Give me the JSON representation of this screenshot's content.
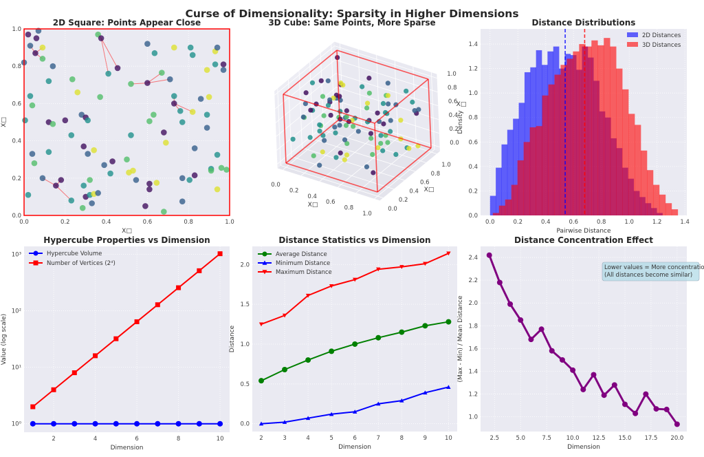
{
  "figure": {
    "suptitle": "Curse of Dimensionality: Sparsity in Higher Dimensions"
  },
  "chart_data": [
    {
      "id": "2d-square",
      "type": "scatter",
      "title": "2D Square: Points Appear Close",
      "xlabel": "X□",
      "ylabel": "X□",
      "xlim": [
        0,
        1
      ],
      "ylim": [
        0,
        1
      ],
      "xticks": [
        0,
        0.2,
        0.4,
        0.6,
        0.8,
        1.0
      ],
      "xtick_labels": [
        "0.0",
        "0.2",
        "0.4",
        "0.6",
        "0.8",
        "1.0"
      ],
      "yticks": [
        0,
        0.2,
        0.4,
        0.6,
        0.8,
        1.0
      ],
      "ytick_labels": [
        "0.0",
        "0.2",
        "0.4",
        "0.6",
        "0.8",
        "1.0"
      ],
      "grid": true,
      "frame_color": "#ff0000",
      "colormap": "viridis",
      "points": [
        [
          0.02,
          0.97,
          0.05
        ],
        [
          0.07,
          0.99,
          0.3
        ],
        [
          0.06,
          0.95,
          0.05
        ],
        [
          0.03,
          0.91,
          0.3
        ],
        [
          0.055,
          0.87,
          0.05
        ],
        [
          0.09,
          0.9,
          0.95
        ],
        [
          0.09,
          0.84,
          0.7
        ],
        [
          0.0,
          0.82,
          0.3
        ],
        [
          0.14,
          0.8,
          0.3
        ],
        [
          0.12,
          0.72,
          0.5
        ],
        [
          0.235,
          0.73,
          0.7
        ],
        [
          0.26,
          0.66,
          0.95
        ],
        [
          0.03,
          0.64,
          0.5
        ],
        [
          0.04,
          0.59,
          0.7
        ],
        [
          0.005,
          0.51,
          0.5
        ],
        [
          0.12,
          0.5,
          0.05
        ],
        [
          0.14,
          0.49,
          0.7
        ],
        [
          0.2,
          0.51,
          0.05
        ],
        [
          0.28,
          0.54,
          0.3
        ],
        [
          0.3,
          0.525,
          0.05
        ],
        [
          0.31,
          0.51,
          0.5
        ],
        [
          0.23,
          0.43,
          0.5
        ],
        [
          0.29,
          0.37,
          0.05
        ],
        [
          0.34,
          0.35,
          0.95
        ],
        [
          0.04,
          0.33,
          0.3
        ],
        [
          0.05,
          0.28,
          0.7
        ],
        [
          0.12,
          0.34,
          0.5
        ],
        [
          0.31,
          0.33,
          0.3
        ],
        [
          0.09,
          0.2,
          0.3
        ],
        [
          0.155,
          0.16,
          0.05
        ],
        [
          0.18,
          0.19,
          0.05
        ],
        [
          0.02,
          0.11,
          0.5
        ],
        [
          0.23,
          0.08,
          0.5
        ],
        [
          0.285,
          0.04,
          0.7
        ],
        [
          0.29,
          0.16,
          0.5
        ],
        [
          0.32,
          0.19,
          0.7
        ],
        [
          0.3,
          0.1,
          0.05
        ],
        [
          0.32,
          0.11,
          0.5
        ],
        [
          0.34,
          0.115,
          0.95
        ],
        [
          0.36,
          0.12,
          0.3
        ],
        [
          0.33,
          0.065,
          0.3
        ],
        [
          0.36,
          0.97,
          0.7
        ],
        [
          0.375,
          0.95,
          0.05
        ],
        [
          0.455,
          0.79,
          0.05
        ],
        [
          0.41,
          0.76,
          0.5
        ],
        [
          0.37,
          0.635,
          0.7
        ],
        [
          0.39,
          0.27,
          0.3
        ],
        [
          0.43,
          0.29,
          0.05
        ],
        [
          0.42,
          0.225,
          0.5
        ],
        [
          0.5,
          0.3,
          0.7
        ],
        [
          0.51,
          0.23,
          0.95
        ],
        [
          0.53,
          0.24,
          0.95
        ],
        [
          0.545,
          0.19,
          0.3
        ],
        [
          0.52,
          0.43,
          0.5
        ],
        [
          0.52,
          0.705,
          0.7
        ],
        [
          0.6,
          0.71,
          0.05
        ],
        [
          0.67,
          0.765,
          0.7
        ],
        [
          0.71,
          0.73,
          0.3
        ],
        [
          0.6,
          0.92,
          0.3
        ],
        [
          0.635,
          0.87,
          0.5
        ],
        [
          0.73,
          0.9,
          0.95
        ],
        [
          0.81,
          0.9,
          0.5
        ],
        [
          0.82,
          0.86,
          0.5
        ],
        [
          0.89,
          0.78,
          0.95
        ],
        [
          0.93,
          0.88,
          0.95
        ],
        [
          0.94,
          0.9,
          0.3
        ],
        [
          0.93,
          0.81,
          0.5
        ],
        [
          0.97,
          0.81,
          0.05
        ],
        [
          0.97,
          0.78,
          0.3
        ],
        [
          0.73,
          0.64,
          0.5
        ],
        [
          0.73,
          0.6,
          0.05
        ],
        [
          0.76,
          0.56,
          0.5
        ],
        [
          0.82,
          0.555,
          0.95
        ],
        [
          0.86,
          0.625,
          0.3
        ],
        [
          0.9,
          0.635,
          0.95
        ],
        [
          0.89,
          0.54,
          0.5
        ],
        [
          0.89,
          0.47,
          0.3
        ],
        [
          0.77,
          0.5,
          0.5
        ],
        [
          0.63,
          0.54,
          0.7
        ],
        [
          0.61,
          0.505,
          0.7
        ],
        [
          0.68,
          0.445,
          0.05
        ],
        [
          0.69,
          0.39,
          0.95
        ],
        [
          0.83,
          0.36,
          0.3
        ],
        [
          0.94,
          0.325,
          0.5
        ],
        [
          0.91,
          0.25,
          0.5
        ],
        [
          0.91,
          0.24,
          0.7
        ],
        [
          0.96,
          0.255,
          0.7
        ],
        [
          0.985,
          0.245,
          0.7
        ],
        [
          0.83,
          0.215,
          0.05
        ],
        [
          0.805,
          0.19,
          0.5
        ],
        [
          0.77,
          0.2,
          0.3
        ],
        [
          0.94,
          0.14,
          0.95
        ],
        [
          0.77,
          0.075,
          0.3
        ],
        [
          0.645,
          0.175,
          0.95
        ],
        [
          0.61,
          0.17,
          0.05
        ],
        [
          0.61,
          0.14,
          0.05
        ],
        [
          0.59,
          0.05,
          0.05
        ],
        [
          0.68,
          0.02,
          0.7
        ]
      ],
      "neighbor_links": [
        [
          4,
          3
        ],
        [
          4,
          5
        ],
        [
          4,
          6
        ],
        [
          42,
          41
        ],
        [
          42,
          43
        ],
        [
          42,
          44
        ],
        [
          55,
          54
        ],
        [
          55,
          56
        ],
        [
          55,
          57
        ],
        [
          70,
          69
        ],
        [
          70,
          71
        ],
        [
          70,
          72
        ],
        [
          29,
          28
        ],
        [
          29,
          30
        ],
        [
          29,
          32
        ]
      ]
    },
    {
      "id": "3d-cube",
      "type": "scatter3d",
      "title": "3D Cube: Same Points, More Sparse",
      "xlabel": "X□",
      "ylabel": "X□",
      "zlabel": "X□",
      "ticks": [
        0,
        0.2,
        0.4,
        0.6,
        0.8,
        1.0
      ],
      "tick_labels": [
        "0.0",
        "0.2",
        "0.4",
        "0.6",
        "0.8",
        "1.0"
      ],
      "cube_color": "#ff0000"
    },
    {
      "id": "distance-distributions",
      "type": "bar",
      "title": "Distance Distributions",
      "xlabel": "Pairwise Distance",
      "ylabel": "Density",
      "xlim": [
        -0.068,
        1.414
      ],
      "ylim": [
        0,
        1.524
      ],
      "xticks": [
        0,
        0.2,
        0.4,
        0.6,
        0.8,
        1.0,
        1.2,
        1.4
      ],
      "xtick_labels": [
        "0.0",
        "0.2",
        "0.4",
        "0.6",
        "0.8",
        "1.0",
        "1.2",
        "1.4"
      ],
      "yticks": [
        0,
        0.2,
        0.4,
        0.6,
        0.8,
        1.0,
        1.2,
        1.4
      ],
      "ytick_labels": [
        "0.0",
        "0.2",
        "0.4",
        "0.6",
        "0.8",
        "1.0",
        "1.2",
        "1.4"
      ],
      "grid": true,
      "legend": "top-right",
      "series": [
        {
          "name": "2D Distances",
          "color": "#0000ff",
          "bin_start": 0.0,
          "bin_width": 0.0413,
          "mean": 0.54,
          "values": [
            0.16,
            0.39,
            0.58,
            0.7,
            0.79,
            0.92,
            1.17,
            1.21,
            1.35,
            1.23,
            1.34,
            1.38,
            1.2,
            1.32,
            1.31,
            1.19,
            1.38,
            1.29,
            1.1,
            0.85,
            0.8,
            0.63,
            0.55,
            0.39,
            0.3,
            0.2,
            0.15,
            0.1,
            0.06,
            0.02
          ]
        },
        {
          "name": "3D Distances",
          "color": "#ff0000",
          "bin_start": 0.02,
          "bin_width": 0.0443,
          "mean": 0.68,
          "values": [
            0.02,
            0.08,
            0.13,
            0.25,
            0.45,
            0.6,
            0.72,
            0.73,
            0.98,
            1.07,
            1.15,
            1.23,
            1.28,
            1.34,
            1.4,
            1.38,
            1.43,
            1.39,
            1.45,
            1.38,
            1.2,
            1.03,
            0.83,
            0.74,
            0.53,
            0.37,
            0.25,
            0.17,
            0.1,
            0.05
          ]
        }
      ]
    },
    {
      "id": "hypercube-properties",
      "type": "line",
      "title": "Hypercube Properties vs Dimension",
      "xlabel": "Dimension",
      "ylabel": "Value (log scale)",
      "xlim": [
        0.577,
        10.46
      ],
      "ylim": [
        0.708,
        1380
      ],
      "yscale": "log",
      "xticks": [
        2,
        4,
        6,
        8,
        10
      ],
      "xtick_labels": [
        "2",
        "4",
        "6",
        "8",
        "10"
      ],
      "yticks": [
        1,
        10,
        100,
        1000
      ],
      "ytick_labels": [
        "10⁰",
        "10¹",
        "10²",
        "10³"
      ],
      "grid": true,
      "legend": "top-left",
      "x": [
        1,
        2,
        3,
        4,
        5,
        6,
        7,
        8,
        9,
        10
      ],
      "series": [
        {
          "name": "Hypercube Volume",
          "color": "#0000ff",
          "marker": "circle",
          "values": [
            1,
            1,
            1,
            1,
            1,
            1,
            1,
            1,
            1,
            1
          ]
        },
        {
          "name": "Number of Vertices (2ᵈ)",
          "color": "#ff0000",
          "marker": "square",
          "values": [
            2,
            4,
            8,
            16,
            32,
            64,
            128,
            256,
            512,
            1024
          ]
        }
      ]
    },
    {
      "id": "distance-statistics",
      "type": "line",
      "title": "Distance Statistics vs Dimension",
      "xlabel": "Dimension",
      "ylabel": "Distance",
      "xlim": [
        1.618,
        10.37
      ],
      "ylim": [
        -0.098,
        2.227
      ],
      "xticks": [
        2,
        3,
        4,
        5,
        6,
        7,
        8,
        9,
        10
      ],
      "xtick_labels": [
        "2",
        "3",
        "4",
        "5",
        "6",
        "7",
        "8",
        "9",
        "10"
      ],
      "yticks": [
        0,
        0.5,
        1.0,
        1.5,
        2.0
      ],
      "ytick_labels": [
        "0.0",
        "0.5",
        "1.0",
        "1.5",
        "2.0"
      ],
      "grid": true,
      "legend": "top-left",
      "x": [
        2,
        3,
        4,
        5,
        6,
        7,
        8,
        9,
        10
      ],
      "series": [
        {
          "name": "Average Distance",
          "color": "#008000",
          "marker": "circle",
          "values": [
            0.54,
            0.68,
            0.8,
            0.91,
            1.0,
            1.08,
            1.15,
            1.23,
            1.28
          ]
        },
        {
          "name": "Minimum Distance",
          "color": "#0000ff",
          "marker": "triangle-up",
          "values": [
            0.0,
            0.02,
            0.07,
            0.12,
            0.15,
            0.25,
            0.29,
            0.39,
            0.46
          ]
        },
        {
          "name": "Maximum Distance",
          "color": "#ff0000",
          "marker": "triangle-down",
          "values": [
            1.25,
            1.36,
            1.61,
            1.73,
            1.81,
            1.94,
            1.97,
            2.01,
            2.14
          ]
        }
      ]
    },
    {
      "id": "distance-concentration",
      "type": "line",
      "title": "Distance Concentration Effect",
      "xlabel": "Dimension",
      "ylabel": "(Max - Min) / Mean Distance",
      "xlim": [
        1.163,
        20.93
      ],
      "ylim": [
        0.871,
        2.497
      ],
      "xticks": [
        2.5,
        5,
        7.5,
        10,
        12.5,
        15,
        17.5,
        20
      ],
      "xtick_labels": [
        "2.5",
        "5.0",
        "7.5",
        "10.0",
        "12.5",
        "15.0",
        "17.5",
        "20.0"
      ],
      "yticks": [
        1.0,
        1.2,
        1.4,
        1.6,
        1.8,
        2.0,
        2.2,
        2.4
      ],
      "ytick_labels": [
        "1.0",
        "1.2",
        "1.4",
        "1.6",
        "1.8",
        "2.0",
        "2.2",
        "2.4"
      ],
      "grid": true,
      "x": [
        2,
        3,
        4,
        5,
        6,
        7,
        8,
        9,
        10,
        11,
        12,
        13,
        14,
        15,
        16,
        17,
        18,
        19,
        20
      ],
      "series": [
        {
          "color": "#800080",
          "marker": "circle",
          "values": [
            2.42,
            2.18,
            1.99,
            1.85,
            1.68,
            1.77,
            1.58,
            1.5,
            1.41,
            1.24,
            1.37,
            1.19,
            1.28,
            1.11,
            1.03,
            1.2,
            1.07,
            1.065,
            0.935
          ]
        }
      ],
      "annotation": {
        "lines": [
          "Lower values = More concentration",
          "(All distances become similar)"
        ],
        "background": "#add8e6"
      }
    }
  ]
}
